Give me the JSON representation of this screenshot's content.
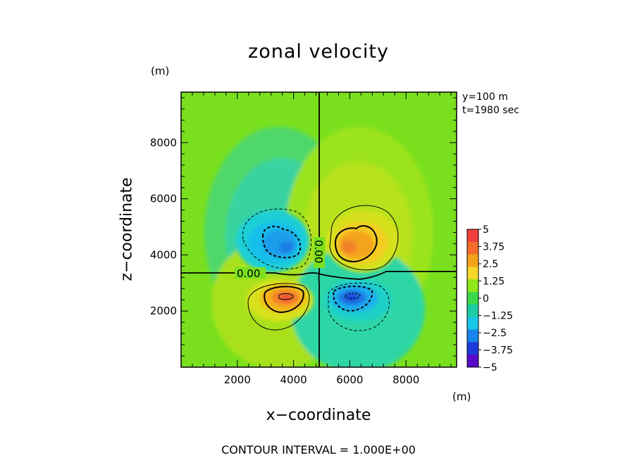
{
  "chart_data": {
    "type": "heatmap",
    "title": "zonal velocity",
    "xlabel": "x−coordinate",
    "ylabel": "z−coordinate",
    "x_unit": "(m)",
    "y_unit": "(m)",
    "xlim": [
      0,
      9800
    ],
    "ylim": [
      0,
      9800
    ],
    "xticks": [
      2000,
      4000,
      6000,
      8000
    ],
    "yticks": [
      2000,
      4000,
      6000,
      8000
    ],
    "xtick_labels": [
      "2000",
      "4000",
      "6000",
      "8000"
    ],
    "ytick_labels": [
      "2000",
      "4000",
      "6000",
      "8000"
    ],
    "annotations": [
      "y=100 m",
      "t=1980 sec"
    ],
    "footer": "CONTOUR INTERVAL = 1.000E+00",
    "contour_interval": 1.0,
    "colorbar": {
      "range": [
        -5,
        5
      ],
      "ticks": [
        5,
        3.75,
        2.5,
        1.25,
        0,
        -1.25,
        -2.5,
        -3.75,
        -5
      ],
      "tick_labels": [
        "5",
        "3.75",
        "2.5",
        "1.25",
        "0",
        "−1.25",
        "−2.5",
        "−3.75",
        "−5"
      ],
      "colors": [
        "#f1403c",
        "#f46d2d",
        "#f4a31c",
        "#f6d72a",
        "#8ee81a",
        "#3ad94e",
        "#1ccca4",
        "#18c6e8",
        "#1a86ec",
        "#1d3adc",
        "#5a0ac8"
      ]
    },
    "features": [
      {
        "kind": "positive",
        "x": 4000,
        "z": 2600,
        "peak": 3.2,
        "label": "lower-left maximum"
      },
      {
        "kind": "negative",
        "x": 3750,
        "z": 4500,
        "peak": -2.4,
        "label": "upper-left minimum"
      },
      {
        "kind": "positive",
        "x": 6200,
        "z": 4500,
        "peak": 2.8,
        "label": "upper-right maximum"
      },
      {
        "kind": "negative",
        "x": 6300,
        "z": 2600,
        "peak": -3.0,
        "label": "lower-right minimum"
      }
    ],
    "zero_contour_labels": [
      "0.00",
      "0.00"
    ]
  }
}
